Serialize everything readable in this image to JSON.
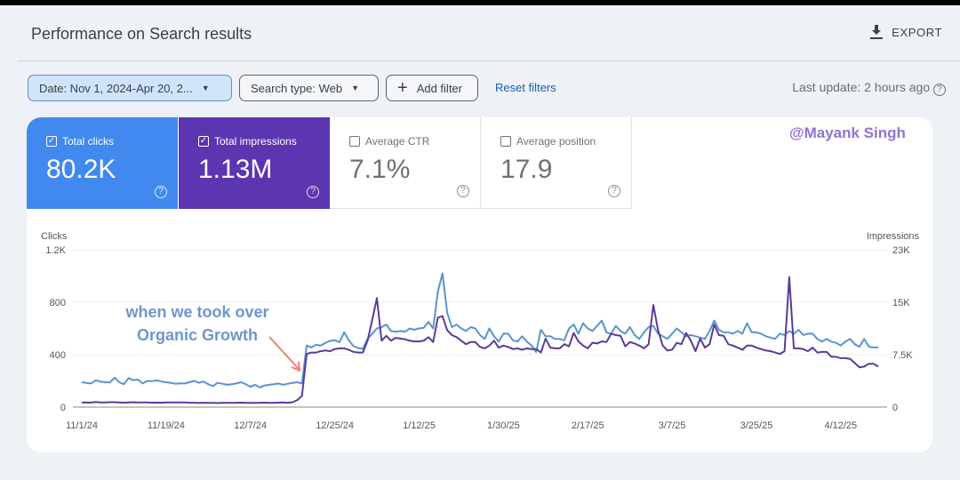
{
  "header": {
    "title": "Performance on Search results",
    "export_label": "EXPORT",
    "export_icon": "download-icon"
  },
  "filters": {
    "date": "Date: Nov 1, 2024-Apr 20, 2...",
    "search_type": "Search type: Web",
    "add_filter": "Add filter",
    "reset": "Reset filters",
    "last_update": "Last update: 2 hours ago"
  },
  "metrics": [
    {
      "label": "Total clicks",
      "value": "80.2K",
      "checked": true,
      "color": "#4189ee"
    },
    {
      "label": "Total impressions",
      "value": "1.13M",
      "checked": true,
      "color": "#5c35b0"
    },
    {
      "label": "Average CTR",
      "value": "7.1%",
      "checked": false
    },
    {
      "label": "Average position",
      "value": "17.9",
      "checked": false
    }
  ],
  "credit": "@Mayank Singh",
  "annotation": {
    "line1": "when we took over",
    "line2": "Organic Growth",
    "text_color": "#6f95cf",
    "arrow_color": "#f08070"
  },
  "chart_data": {
    "type": "line",
    "left_axis_label": "Clicks",
    "right_axis_label": "Impressions",
    "left_ticks": [
      "0",
      "400",
      "800",
      "1.2K"
    ],
    "right_ticks": [
      "0",
      "7.5K",
      "15K",
      "23K"
    ],
    "left_ylim": [
      0,
      1200
    ],
    "right_ylim": [
      0,
      22500
    ],
    "x_ticks": [
      "11/1/24",
      "11/19/24",
      "12/7/24",
      "12/25/24",
      "1/12/25",
      "1/30/25",
      "2/17/25",
      "3/7/25",
      "3/25/25",
      "4/12/25"
    ],
    "x_start": "2024-11-01",
    "x_end": "2025-04-20",
    "grid": true,
    "series": [
      {
        "name": "Clicks",
        "axis": "left",
        "color": "#5a93d0",
        "values": [
          190,
          185,
          180,
          205,
          195,
          190,
          188,
          225,
          190,
          175,
          222,
          205,
          210,
          180,
          200,
          198,
          205,
          195,
          190,
          185,
          178,
          182,
          180,
          190,
          200,
          185,
          195,
          175,
          160,
          185,
          178,
          170,
          175,
          180,
          190,
          175,
          155,
          170,
          150,
          165,
          170,
          175,
          180,
          170,
          178,
          185,
          190,
          180,
          470,
          455,
          475,
          470,
          490,
          505,
          510,
          495,
          570,
          510,
          465,
          450,
          445,
          520,
          560,
          600,
          610,
          630,
          580,
          575,
          580,
          575,
          600,
          590,
          600,
          605,
          650,
          600,
          880,
          1020,
          720,
          610,
          630,
          600,
          580,
          610,
          600,
          550,
          520,
          600,
          540,
          500,
          560,
          560,
          510,
          500,
          540,
          500,
          470,
          420,
          590,
          540,
          540,
          520,
          520,
          510,
          600,
          630,
          560,
          640,
          600,
          580,
          620,
          660,
          570,
          560,
          620,
          580,
          560,
          610,
          550,
          520,
          570,
          610,
          620,
          560,
          540,
          520,
          560,
          600,
          570,
          540,
          550,
          540,
          530,
          520,
          580,
          660,
          590,
          570,
          570,
          560,
          580,
          560,
          640,
          570,
          570,
          560,
          540,
          530,
          520,
          560,
          550,
          580,
          560,
          590,
          550,
          560,
          560,
          520,
          500,
          520,
          500,
          490,
          470,
          500,
          520,
          480,
          460,
          520,
          460,
          455,
          455
        ]
      },
      {
        "name": "Impressions",
        "axis": "right",
        "color": "#5b3a9a",
        "values": [
          650,
          660,
          650,
          720,
          680,
          660,
          700,
          700,
          660,
          640,
          680,
          700,
          680,
          660,
          660,
          640,
          650,
          640,
          660,
          680,
          660,
          680,
          670,
          640,
          620,
          600,
          620,
          600,
          600,
          580,
          600,
          620,
          600,
          620,
          640,
          620,
          600,
          600,
          620,
          640,
          600,
          620,
          640,
          660,
          620,
          700,
          1000,
          1600,
          7600,
          7800,
          7800,
          8000,
          8100,
          8000,
          8300,
          8400,
          8400,
          8200,
          7900,
          7800,
          7800,
          9500,
          12500,
          15600,
          9500,
          10200,
          9500,
          9900,
          9800,
          9700,
          9500,
          9400,
          9400,
          9500,
          10000,
          9300,
          12800,
          13000,
          11000,
          10300,
          10000,
          9500,
          9000,
          9300,
          9300,
          8600,
          8400,
          8800,
          9500,
          8500,
          8800,
          8600,
          8300,
          8400,
          8200,
          8400,
          8300,
          8300,
          7800,
          9800,
          8500,
          8400,
          8400,
          9000,
          8700,
          10600,
          9400,
          8800,
          8400,
          9200,
          9100,
          9400,
          9300,
          10500,
          10300,
          10200,
          8700,
          9300,
          9100,
          8800,
          8400,
          9000,
          14600,
          11000,
          8800,
          8100,
          8200,
          9200,
          9000,
          10600,
          9500,
          8000,
          9800,
          8500,
          9000,
          11800,
          10300,
          10200,
          9000,
          8800,
          8500,
          8200,
          8800,
          8800,
          8500,
          8300,
          8100,
          8000,
          7800,
          7600,
          8000,
          18600,
          8400,
          8400,
          8300,
          8000,
          8500,
          7800,
          7900,
          7900,
          7200,
          7200,
          7000,
          7000,
          6900,
          6300,
          5700,
          5800,
          6200,
          6200,
          5800
        ]
      }
    ]
  }
}
